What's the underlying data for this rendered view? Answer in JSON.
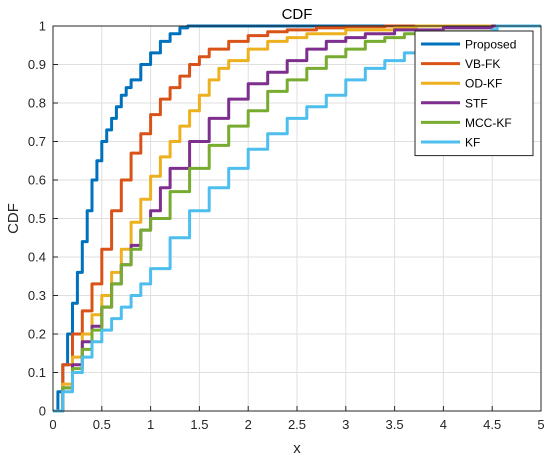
{
  "chart_data": {
    "type": "line",
    "title": "CDF",
    "xlabel": "x",
    "ylabel": "CDF",
    "xlim": [
      0,
      5
    ],
    "ylim": [
      0,
      1
    ],
    "xticks": [
      "0",
      "0.5",
      "1",
      "1.5",
      "2",
      "2.5",
      "3",
      "3.5",
      "4",
      "4.5",
      "5"
    ],
    "yticks": [
      "0",
      "0.1",
      "0.2",
      "0.3",
      "0.4",
      "0.5",
      "0.6",
      "0.7",
      "0.8",
      "0.9",
      "1"
    ],
    "grid": true,
    "legend_position": "top-right",
    "series": [
      {
        "name": "Proposed",
        "color": "#0072BD",
        "x": [
          0,
          0.05,
          0.1,
          0.15,
          0.2,
          0.25,
          0.3,
          0.35,
          0.4,
          0.45,
          0.5,
          0.55,
          0.6,
          0.65,
          0.7,
          0.75,
          0.8,
          0.9,
          1.0,
          1.1,
          1.2,
          1.3,
          1.38
        ],
        "y": [
          0,
          0.05,
          0.12,
          0.2,
          0.28,
          0.36,
          0.44,
          0.52,
          0.6,
          0.65,
          0.7,
          0.73,
          0.76,
          0.79,
          0.82,
          0.84,
          0.86,
          0.9,
          0.93,
          0.96,
          0.98,
          0.995,
          1.0
        ]
      },
      {
        "name": "VB-FK",
        "color": "#D95319",
        "x": [
          0,
          0.1,
          0.2,
          0.3,
          0.4,
          0.5,
          0.6,
          0.7,
          0.8,
          0.9,
          1.0,
          1.1,
          1.2,
          1.3,
          1.4,
          1.5,
          1.6,
          1.8,
          2.0,
          2.2,
          2.4,
          2.7,
          3.0,
          3.4
        ],
        "y": [
          0,
          0.12,
          0.2,
          0.26,
          0.33,
          0.42,
          0.52,
          0.6,
          0.67,
          0.72,
          0.77,
          0.81,
          0.84,
          0.87,
          0.9,
          0.92,
          0.94,
          0.96,
          0.975,
          0.985,
          0.99,
          0.995,
          0.998,
          1.0
        ]
      },
      {
        "name": "OD-KF",
        "color": "#EDB120",
        "x": [
          0,
          0.1,
          0.2,
          0.3,
          0.4,
          0.5,
          0.6,
          0.7,
          0.8,
          0.9,
          1.0,
          1.1,
          1.2,
          1.3,
          1.4,
          1.5,
          1.6,
          1.7,
          1.8,
          2.0,
          2.2,
          2.4,
          2.6,
          3.0,
          3.5,
          3.72
        ],
        "y": [
          0,
          0.07,
          0.14,
          0.2,
          0.25,
          0.3,
          0.36,
          0.42,
          0.49,
          0.55,
          0.61,
          0.66,
          0.7,
          0.74,
          0.78,
          0.82,
          0.86,
          0.89,
          0.91,
          0.94,
          0.96,
          0.97,
          0.98,
          0.99,
          0.995,
          1.0
        ]
      },
      {
        "name": "STF",
        "color": "#7E2F8E",
        "x": [
          0,
          0.1,
          0.2,
          0.3,
          0.4,
          0.5,
          0.6,
          0.7,
          0.8,
          0.9,
          1.0,
          1.1,
          1.2,
          1.4,
          1.6,
          1.8,
          2.0,
          2.2,
          2.4,
          2.6,
          2.8,
          3.0,
          3.2,
          3.5,
          4.0,
          4.5
        ],
        "y": [
          0,
          0.06,
          0.12,
          0.18,
          0.22,
          0.27,
          0.33,
          0.38,
          0.43,
          0.47,
          0.52,
          0.58,
          0.63,
          0.7,
          0.76,
          0.81,
          0.85,
          0.88,
          0.91,
          0.94,
          0.96,
          0.97,
          0.98,
          0.99,
          0.995,
          1.0
        ]
      },
      {
        "name": "MCC-KF",
        "color": "#77AC30",
        "x": [
          0,
          0.1,
          0.2,
          0.3,
          0.4,
          0.5,
          0.6,
          0.7,
          0.8,
          0.9,
          1.0,
          1.2,
          1.4,
          1.6,
          1.8,
          2.0,
          2.2,
          2.4,
          2.6,
          2.8,
          3.0,
          3.2,
          3.4,
          3.6,
          4.0,
          4.5,
          4.55
        ],
        "y": [
          0,
          0.06,
          0.11,
          0.16,
          0.21,
          0.27,
          0.33,
          0.38,
          0.42,
          0.47,
          0.5,
          0.57,
          0.63,
          0.69,
          0.74,
          0.78,
          0.83,
          0.86,
          0.89,
          0.92,
          0.94,
          0.96,
          0.97,
          0.98,
          0.985,
          0.99,
          1.0
        ]
      },
      {
        "name": "KF",
        "color": "#4DBEEE",
        "x": [
          0,
          0.1,
          0.2,
          0.3,
          0.4,
          0.5,
          0.6,
          0.7,
          0.8,
          0.9,
          1.0,
          1.2,
          1.4,
          1.6,
          1.8,
          2.0,
          2.2,
          2.4,
          2.6,
          2.8,
          3.0,
          3.2,
          3.4,
          3.6,
          3.8,
          4.0,
          4.2,
          4.5,
          4.55
        ],
        "y": [
          0,
          0.05,
          0.1,
          0.14,
          0.18,
          0.21,
          0.24,
          0.27,
          0.3,
          0.33,
          0.37,
          0.45,
          0.52,
          0.58,
          0.63,
          0.68,
          0.72,
          0.76,
          0.79,
          0.82,
          0.86,
          0.89,
          0.91,
          0.93,
          0.95,
          0.97,
          0.98,
          0.99,
          1.0
        ]
      }
    ]
  }
}
